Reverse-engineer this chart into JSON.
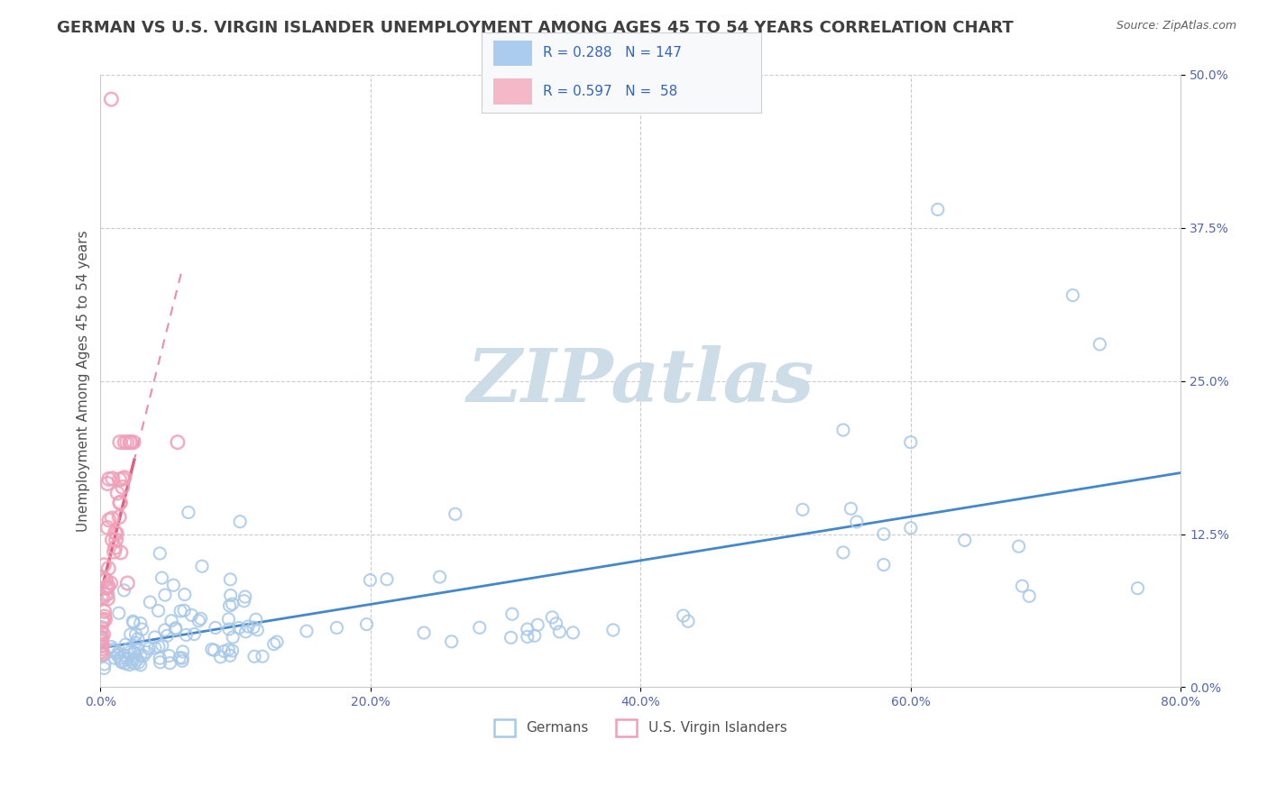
{
  "title": "GERMAN VS U.S. VIRGIN ISLANDER UNEMPLOYMENT AMONG AGES 45 TO 54 YEARS CORRELATION CHART",
  "source": "Source: ZipAtlas.com",
  "ylabel": "Unemployment Among Ages 45 to 54 years",
  "xlim": [
    0.0,
    0.8
  ],
  "ylim": [
    0.0,
    0.5
  ],
  "xticks": [
    0.0,
    0.2,
    0.4,
    0.6,
    0.8
  ],
  "yticks": [
    0.0,
    0.125,
    0.25,
    0.375,
    0.5
  ],
  "xtick_labels": [
    "0.0%",
    "20.0%",
    "40.0%",
    "60.0%",
    "80.0%"
  ],
  "ytick_labels": [
    "0.0%",
    "12.5%",
    "25.0%",
    "37.5%",
    "50.0%"
  ],
  "german_R": 0.288,
  "german_N": 147,
  "virgin_R": 0.597,
  "virgin_N": 58,
  "blue_scatter_color": "#a8c8e8",
  "pink_scatter_color": "#f0a0b8",
  "blue_line_color": "#4488cc",
  "pink_line_color": "#e06080",
  "watermark": "ZIPatlas",
  "watermark_color": "#ccdde8",
  "legend_box_blue": "#aaccee",
  "legend_box_pink": "#f4b8c8",
  "legend_text_color": "#3366bb",
  "title_color": "#404040",
  "title_fontsize": 13,
  "ylabel_fontsize": 11,
  "grid_color": "#cccccc",
  "background_color": "#ffffff",
  "source_color": "#606060"
}
